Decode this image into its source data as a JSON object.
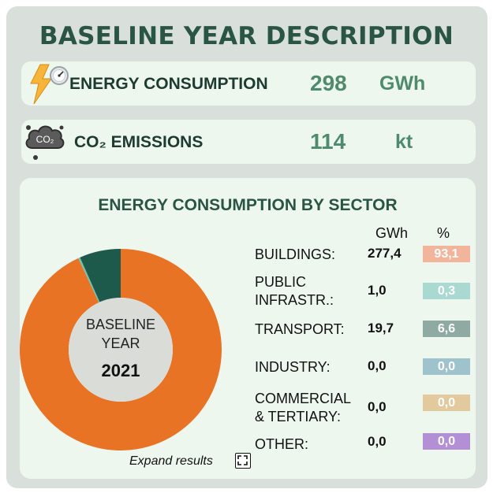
{
  "title": "BASELINE YEAR DESCRIPTION",
  "energy": {
    "label": "ENERGY CONSUMPTION",
    "value": "298",
    "unit": "GWh",
    "icon": "lightning-gauge-icon"
  },
  "co2": {
    "label": "CO₂ EMISSIONS",
    "value": "114",
    "unit": "kt",
    "icon": "co2-cloud-icon",
    "icon_text": "CO₂"
  },
  "sectors_panel": {
    "title": "ENERGY CONSUMPTION BY SECTOR",
    "col_gwh": "GWh",
    "col_pct": "%",
    "center_label_line1": "BASELINE",
    "center_label_line2": "YEAR",
    "center_year": "2021",
    "expand_label": "Expand results",
    "rows": [
      {
        "name_line1": "BUILDINGS:",
        "name_line2": "",
        "gwh": "277,4",
        "pct": "93,1",
        "color": "#f2b49a"
      },
      {
        "name_line1": "PUBLIC",
        "name_line2": "INFRASTR.:",
        "gwh": "1,0",
        "pct": "0,3",
        "color": "#a9d9d1"
      },
      {
        "name_line1": "TRANSPORT:",
        "name_line2": "",
        "gwh": "19,7",
        "pct": "6,6",
        "color": "#8fa9a3"
      },
      {
        "name_line1": "INDUSTRY:",
        "name_line2": "",
        "gwh": "0,0",
        "pct": "0,0",
        "color": "#9fc3cc"
      },
      {
        "name_line1": "COMMERCIAL",
        "name_line2": "& TERTIARY:",
        "gwh": "0,0",
        "pct": "0,0",
        "color": "#e3c99e"
      },
      {
        "name_line1": "OTHER:",
        "name_line2": "",
        "gwh": "0,0",
        "pct": "0,0",
        "color": "#b38fd6"
      }
    ]
  },
  "chart_data": {
    "type": "pie",
    "title": "ENERGY CONSUMPTION BY SECTOR",
    "categories": [
      "BUILDINGS",
      "PUBLIC INFRASTR.",
      "TRANSPORT",
      "INDUSTRY",
      "COMMERCIAL & TERTIARY",
      "OTHER"
    ],
    "values": [
      93.1,
      0.3,
      6.6,
      0.0,
      0.0,
      0.0
    ],
    "colors": [
      "#e87324",
      "#6fc3b2",
      "#1e5a4c",
      "#4c93a6",
      "#d7a95f",
      "#8e5bc4"
    ]
  }
}
